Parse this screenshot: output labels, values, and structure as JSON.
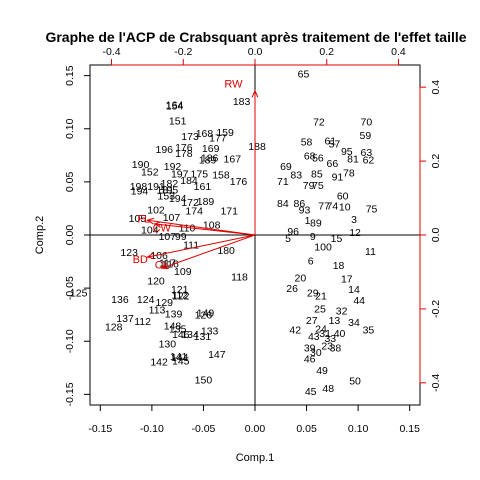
{
  "chart_data": {
    "type": "scatter",
    "title": "Graphe de l'ACP de Crabsquant après traitement de l'effet taille",
    "xlabel": "Comp.1",
    "ylabel": "Comp.2",
    "xlim": [
      -0.16,
      0.16
    ],
    "ylim": [
      -0.16,
      0.16
    ],
    "xticks": [
      -0.15,
      -0.1,
      -0.05,
      0.0,
      0.05,
      0.1,
      0.15
    ],
    "yticks": [
      -0.15,
      -0.1,
      -0.05,
      0.0,
      0.05,
      0.1,
      0.15
    ],
    "xtick_labels": [
      "-0.15",
      "-0.10",
      "-0.05",
      "0.00",
      "0.05",
      "0.10",
      "0.15"
    ],
    "ytick_labels": [
      "-0.15",
      "-0.10",
      "-0.05",
      "0.00",
      "0.05",
      "0.10",
      "0.15"
    ],
    "secondary_lim": [
      -0.46,
      0.46
    ],
    "top_ticks": [
      -0.4,
      -0.2,
      0.0,
      0.2,
      0.4
    ],
    "top_tick_labels": [
      "-0.4",
      "-0.2",
      "0.0",
      "0.2",
      "0.4"
    ],
    "right_ticks": [
      -0.4,
      -0.2,
      0.0,
      0.2,
      0.4
    ],
    "right_tick_labels": [
      "-0.4",
      "-0.2",
      "0.0",
      "0.2",
      "0.4"
    ],
    "reference_lines": {
      "x": 0,
      "y": 0
    },
    "arrow_color": "#e00000",
    "variables": [
      {
        "name": "RW",
        "x": 0.0,
        "y": 0.39,
        "lx": -0.06,
        "ly": 0.41
      },
      {
        "name": "FL",
        "x": -0.3,
        "y": 0.04,
        "lx": -0.31,
        "ly": 0.045
      },
      {
        "name": "CW",
        "x": -0.28,
        "y": 0.03,
        "lx": -0.26,
        "ly": 0.02
      },
      {
        "name": "CL",
        "x": -0.3,
        "y": -0.06,
        "lx": -0.26,
        "ly": -0.08
      },
      {
        "name": "BD",
        "x": -0.26,
        "y": -0.09,
        "lx": -0.32,
        "ly": -0.065
      }
    ],
    "observations": [
      {
        "label": "65",
        "x": 0.047,
        "y": 0.152
      },
      {
        "label": "183",
        "x": -0.013,
        "y": 0.126
      },
      {
        "label": "154",
        "x": -0.078,
        "y": 0.122
      },
      {
        "label": "164",
        "x": -0.078,
        "y": 0.123
      },
      {
        "label": "151",
        "x": -0.075,
        "y": 0.108
      },
      {
        "label": "72",
        "x": 0.062,
        "y": 0.107
      },
      {
        "label": "70",
        "x": 0.108,
        "y": 0.107
      },
      {
        "label": "59",
        "x": 0.107,
        "y": 0.094
      },
      {
        "label": "168",
        "x": -0.049,
        "y": 0.096
      },
      {
        "label": "159",
        "x": -0.029,
        "y": 0.097
      },
      {
        "label": "173",
        "x": -0.063,
        "y": 0.093
      },
      {
        "label": "177",
        "x": -0.036,
        "y": 0.092
      },
      {
        "label": "58",
        "x": 0.05,
        "y": 0.088
      },
      {
        "label": "61",
        "x": 0.073,
        "y": 0.089
      },
      {
        "label": "57",
        "x": 0.077,
        "y": 0.086
      },
      {
        "label": "196",
        "x": -0.088,
        "y": 0.081
      },
      {
        "label": "176",
        "x": -0.069,
        "y": 0.083
      },
      {
        "label": "169",
        "x": -0.043,
        "y": 0.082
      },
      {
        "label": "188",
        "x": 0.002,
        "y": 0.084
      },
      {
        "label": "95",
        "x": 0.089,
        "y": 0.079
      },
      {
        "label": "63",
        "x": 0.108,
        "y": 0.078
      },
      {
        "label": "178",
        "x": -0.069,
        "y": 0.077
      },
      {
        "label": "186",
        "x": -0.044,
        "y": 0.073
      },
      {
        "label": "189",
        "x": -0.046,
        "y": 0.071
      },
      {
        "label": "167",
        "x": -0.022,
        "y": 0.072
      },
      {
        "label": "68",
        "x": 0.053,
        "y": 0.075
      },
      {
        "label": "56",
        "x": 0.061,
        "y": 0.073
      },
      {
        "label": "62",
        "x": 0.11,
        "y": 0.071
      },
      {
        "label": "81",
        "x": 0.095,
        "y": 0.072
      },
      {
        "label": "190",
        "x": -0.111,
        "y": 0.067
      },
      {
        "label": "192",
        "x": -0.08,
        "y": 0.065
      },
      {
        "label": "152",
        "x": -0.102,
        "y": 0.06
      },
      {
        "label": "197",
        "x": -0.073,
        "y": 0.058
      },
      {
        "label": "175",
        "x": -0.054,
        "y": 0.058
      },
      {
        "label": "158",
        "x": -0.033,
        "y": 0.057
      },
      {
        "label": "69",
        "x": 0.03,
        "y": 0.065
      },
      {
        "label": "66",
        "x": 0.075,
        "y": 0.068
      },
      {
        "label": "78",
        "x": 0.091,
        "y": 0.059
      },
      {
        "label": "83",
        "x": 0.04,
        "y": 0.057
      },
      {
        "label": "85",
        "x": 0.06,
        "y": 0.058
      },
      {
        "label": "91",
        "x": 0.08,
        "y": 0.055
      },
      {
        "label": "184",
        "x": -0.064,
        "y": 0.052
      },
      {
        "label": "182",
        "x": -0.083,
        "y": 0.049
      },
      {
        "label": "176",
        "x": -0.016,
        "y": 0.051
      },
      {
        "label": "71",
        "x": 0.027,
        "y": 0.051
      },
      {
        "label": "79",
        "x": 0.052,
        "y": 0.047
      },
      {
        "label": "75",
        "x": 0.061,
        "y": 0.047
      },
      {
        "label": "198",
        "x": -0.113,
        "y": 0.046
      },
      {
        "label": "191",
        "x": -0.096,
        "y": 0.046
      },
      {
        "label": "161",
        "x": -0.051,
        "y": 0.046
      },
      {
        "label": "181",
        "x": -0.087,
        "y": 0.043
      },
      {
        "label": "195",
        "x": -0.083,
        "y": 0.043
      },
      {
        "label": "194",
        "x": -0.112,
        "y": 0.042
      },
      {
        "label": "153",
        "x": -0.086,
        "y": 0.037
      },
      {
        "label": "60",
        "x": 0.085,
        "y": 0.037
      },
      {
        "label": "194",
        "x": -0.075,
        "y": 0.035
      },
      {
        "label": "189",
        "x": -0.048,
        "y": 0.032
      },
      {
        "label": "172",
        "x": -0.063,
        "y": 0.031
      },
      {
        "label": "84",
        "x": 0.027,
        "y": 0.03
      },
      {
        "label": "86",
        "x": 0.043,
        "y": 0.03
      },
      {
        "label": "77",
        "x": 0.067,
        "y": 0.028
      },
      {
        "label": "74",
        "x": 0.075,
        "y": 0.028
      },
      {
        "label": "10",
        "x": 0.087,
        "y": 0.027
      },
      {
        "label": "75",
        "x": 0.113,
        "y": 0.025
      },
      {
        "label": "171",
        "x": -0.025,
        "y": 0.023
      },
      {
        "label": "174",
        "x": -0.059,
        "y": 0.023
      },
      {
        "label": "102",
        "x": -0.096,
        "y": 0.024
      },
      {
        "label": "93",
        "x": 0.048,
        "y": 0.024
      },
      {
        "label": "107",
        "x": -0.081,
        "y": 0.017
      },
      {
        "label": "105",
        "x": -0.114,
        "y": 0.016
      },
      {
        "label": "1",
        "x": 0.051,
        "y": 0.014
      },
      {
        "label": "89",
        "x": 0.059,
        "y": 0.012
      },
      {
        "label": "3",
        "x": 0.096,
        "y": 0.015
      },
      {
        "label": "108",
        "x": -0.042,
        "y": 0.01
      },
      {
        "label": "110",
        "x": -0.066,
        "y": 0.007
      },
      {
        "label": "104",
        "x": -0.102,
        "y": 0.005
      },
      {
        "label": "96",
        "x": 0.037,
        "y": 0.004
      },
      {
        "label": "12",
        "x": 0.097,
        "y": 0.003
      },
      {
        "label": "5",
        "x": 0.032,
        "y": -0.003
      },
      {
        "label": "9",
        "x": 0.056,
        "y": -0.001
      },
      {
        "label": "107",
        "x": -0.085,
        "y": -0.001
      },
      {
        "label": "99",
        "x": -0.072,
        "y": -0.001
      },
      {
        "label": "15",
        "x": 0.079,
        "y": -0.003
      },
      {
        "label": "111",
        "x": -0.062,
        "y": -0.009
      },
      {
        "label": "100",
        "x": 0.066,
        "y": -0.011
      },
      {
        "label": "180",
        "x": -0.028,
        "y": -0.014
      },
      {
        "label": "123",
        "x": -0.122,
        "y": -0.016
      },
      {
        "label": "106",
        "x": -0.093,
        "y": -0.019
      },
      {
        "label": "11",
        "x": 0.112,
        "y": -0.015
      },
      {
        "label": "6",
        "x": 0.054,
        "y": -0.024
      },
      {
        "label": "117",
        "x": -0.085,
        "y": -0.026
      },
      {
        "label": "116",
        "x": -0.082,
        "y": -0.027
      },
      {
        "label": "18",
        "x": 0.081,
        "y": -0.028
      },
      {
        "label": "109",
        "x": -0.07,
        "y": -0.034
      },
      {
        "label": "20",
        "x": 0.044,
        "y": -0.04
      },
      {
        "label": "118",
        "x": -0.015,
        "y": -0.039
      },
      {
        "label": "120",
        "x": -0.096,
        "y": -0.043
      },
      {
        "label": "17",
        "x": 0.089,
        "y": -0.041
      },
      {
        "label": "26",
        "x": 0.036,
        "y": -0.05
      },
      {
        "label": "121",
        "x": -0.073,
        "y": -0.051
      },
      {
        "label": "125",
        "x": -0.171,
        "y": -0.054
      },
      {
        "label": "29",
        "x": 0.056,
        "y": -0.054
      },
      {
        "label": "112",
        "x": -0.073,
        "y": -0.056
      },
      {
        "label": "122",
        "x": -0.072,
        "y": -0.057
      },
      {
        "label": "14",
        "x": 0.096,
        "y": -0.051
      },
      {
        "label": "21",
        "x": 0.064,
        "y": -0.057
      },
      {
        "label": "136",
        "x": -0.131,
        "y": -0.06
      },
      {
        "label": "124",
        "x": -0.106,
        "y": -0.06
      },
      {
        "label": "129",
        "x": -0.088,
        "y": -0.063
      },
      {
        "label": "44",
        "x": 0.101,
        "y": -0.061
      },
      {
        "label": "113",
        "x": -0.095,
        "y": -0.07
      },
      {
        "label": "25",
        "x": 0.063,
        "y": -0.069
      },
      {
        "label": "139",
        "x": -0.079,
        "y": -0.074
      },
      {
        "label": "137",
        "x": -0.126,
        "y": -0.078
      },
      {
        "label": "112",
        "x": -0.109,
        "y": -0.081
      },
      {
        "label": "27",
        "x": 0.055,
        "y": -0.08
      },
      {
        "label": "13",
        "x": 0.077,
        "y": -0.08
      },
      {
        "label": "32",
        "x": 0.084,
        "y": -0.071
      },
      {
        "label": "149",
        "x": -0.048,
        "y": -0.073
      },
      {
        "label": "126",
        "x": -0.05,
        "y": -0.075
      },
      {
        "label": "128",
        "x": -0.137,
        "y": -0.086
      },
      {
        "label": "148",
        "x": -0.08,
        "y": -0.085
      },
      {
        "label": "135",
        "x": -0.075,
        "y": -0.088
      },
      {
        "label": "34",
        "x": 0.096,
        "y": -0.082
      },
      {
        "label": "42",
        "x": 0.039,
        "y": -0.089
      },
      {
        "label": "24",
        "x": 0.064,
        "y": -0.088
      },
      {
        "label": "31",
        "x": 0.068,
        "y": -0.092
      },
      {
        "label": "40",
        "x": 0.082,
        "y": -0.092
      },
      {
        "label": "35",
        "x": 0.11,
        "y": -0.089
      },
      {
        "label": "133",
        "x": -0.044,
        "y": -0.09
      },
      {
        "label": "146",
        "x": -0.072,
        "y": -0.093
      },
      {
        "label": "134",
        "x": -0.063,
        "y": -0.093
      },
      {
        "label": "131",
        "x": -0.051,
        "y": -0.095
      },
      {
        "label": "43",
        "x": 0.057,
        "y": -0.095
      },
      {
        "label": "33",
        "x": 0.073,
        "y": -0.097
      },
      {
        "label": "130",
        "x": -0.085,
        "y": -0.102
      },
      {
        "label": "39",
        "x": 0.053,
        "y": -0.106
      },
      {
        "label": "23",
        "x": 0.07,
        "y": -0.104
      },
      {
        "label": "38",
        "x": 0.078,
        "y": -0.106
      },
      {
        "label": "30",
        "x": 0.059,
        "y": -0.11
      },
      {
        "label": "147",
        "x": -0.037,
        "y": -0.112
      },
      {
        "label": "141",
        "x": -0.074,
        "y": -0.114
      },
      {
        "label": "144",
        "x": -0.073,
        "y": -0.115
      },
      {
        "label": "46",
        "x": 0.053,
        "y": -0.116
      },
      {
        "label": "142",
        "x": -0.093,
        "y": -0.119
      },
      {
        "label": "145",
        "x": -0.072,
        "y": -0.118
      },
      {
        "label": "49",
        "x": 0.065,
        "y": -0.127
      },
      {
        "label": "50",
        "x": 0.097,
        "y": -0.137
      },
      {
        "label": "150",
        "x": -0.05,
        "y": -0.136
      },
      {
        "label": "48",
        "x": 0.071,
        "y": -0.144
      },
      {
        "label": "45",
        "x": 0.054,
        "y": -0.147
      }
    ]
  }
}
